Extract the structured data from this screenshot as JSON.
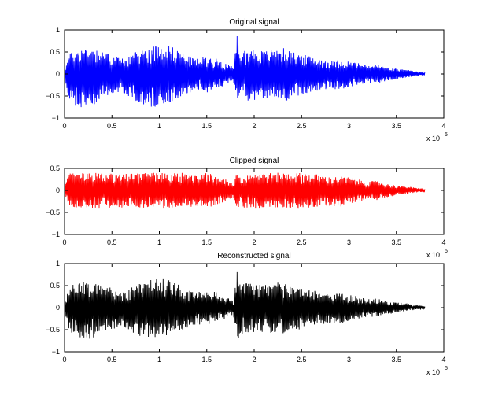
{
  "chart_data": [
    {
      "type": "line",
      "title": "Original signal",
      "xlabel": "",
      "ylabel": "",
      "xlim": [
        0,
        400000
      ],
      "ylim": [
        -1,
        1
      ],
      "x_ticks": [
        0,
        50000,
        100000,
        150000,
        200000,
        250000,
        300000,
        350000,
        400000
      ],
      "x_tick_labels": [
        "0",
        "0.5",
        "1",
        "1.5",
        "2",
        "2.5",
        "3",
        "3.5",
        "4"
      ],
      "y_ticks": [
        -1,
        -0.5,
        0,
        0.5,
        1
      ],
      "y_tick_labels": [
        "−1",
        "−0.5",
        "0",
        "0.5",
        "1"
      ],
      "x_exponent_label": "x 10",
      "x_exponent": "5",
      "grid": false,
      "series": [
        {
          "color": "#0000ff",
          "x": [
            0,
            5000,
            10000,
            20000,
            30000,
            40000,
            50000,
            60000,
            70000,
            80000,
            90000,
            100000,
            110000,
            120000,
            130000,
            140000,
            150000,
            160000,
            170000,
            178000,
            182000,
            186000,
            190000,
            200000,
            210000,
            220000,
            230000,
            240000,
            250000,
            260000,
            270000,
            280000,
            290000,
            300000,
            310000,
            320000,
            330000,
            340000,
            350000,
            360000,
            370000,
            380000
          ],
          "upper": [
            0.1,
            0.45,
            0.55,
            0.6,
            0.62,
            0.5,
            0.45,
            0.35,
            0.45,
            0.55,
            0.62,
            0.68,
            0.65,
            0.55,
            0.4,
            0.35,
            0.4,
            0.35,
            0.25,
            0.15,
            0.95,
            0.5,
            0.55,
            0.58,
            0.52,
            0.55,
            0.6,
            0.5,
            0.45,
            0.4,
            0.35,
            0.3,
            0.32,
            0.3,
            0.25,
            0.2,
            0.22,
            0.15,
            0.12,
            0.1,
            0.06,
            0.04
          ],
          "lower": [
            -0.1,
            -0.6,
            -0.75,
            -0.8,
            -0.72,
            -0.55,
            -0.5,
            -0.4,
            -0.55,
            -0.7,
            -0.78,
            -0.72,
            -0.65,
            -0.55,
            -0.45,
            -0.38,
            -0.42,
            -0.35,
            -0.25,
            -0.15,
            -0.85,
            -0.6,
            -0.62,
            -0.6,
            -0.55,
            -0.6,
            -0.65,
            -0.55,
            -0.48,
            -0.42,
            -0.38,
            -0.35,
            -0.38,
            -0.3,
            -0.25,
            -0.2,
            -0.22,
            -0.15,
            -0.12,
            -0.08,
            -0.05,
            -0.04
          ]
        }
      ]
    },
    {
      "type": "line",
      "title": "Clipped signal",
      "xlabel": "",
      "ylabel": "",
      "xlim": [
        0,
        400000
      ],
      "ylim": [
        -1,
        0.5
      ],
      "x_ticks": [
        0,
        50000,
        100000,
        150000,
        200000,
        250000,
        300000,
        350000,
        400000
      ],
      "x_tick_labels": [
        "0",
        "0.5",
        "1",
        "1.5",
        "2",
        "2.5",
        "3",
        "3.5",
        "4"
      ],
      "y_ticks": [
        -1,
        -0.5,
        0,
        0.5
      ],
      "y_tick_labels": [
        "−1",
        "−0.5",
        "0",
        "0.5"
      ],
      "x_exponent_label": "x 10",
      "x_exponent": "5",
      "grid": false,
      "series": [
        {
          "color": "#ff0000",
          "x": [
            0,
            5000,
            10000,
            20000,
            30000,
            40000,
            50000,
            60000,
            70000,
            80000,
            90000,
            100000,
            110000,
            120000,
            130000,
            140000,
            150000,
            160000,
            170000,
            178000,
            182000,
            186000,
            190000,
            200000,
            210000,
            220000,
            230000,
            240000,
            250000,
            260000,
            270000,
            280000,
            290000,
            300000,
            310000,
            320000,
            330000,
            340000,
            350000,
            360000,
            370000,
            380000
          ],
          "upper": [
            0.1,
            0.4,
            0.4,
            0.4,
            0.4,
            0.4,
            0.4,
            0.35,
            0.4,
            0.4,
            0.4,
            0.4,
            0.4,
            0.4,
            0.4,
            0.35,
            0.4,
            0.35,
            0.25,
            0.15,
            0.4,
            0.4,
            0.4,
            0.4,
            0.4,
            0.4,
            0.4,
            0.4,
            0.4,
            0.4,
            0.35,
            0.3,
            0.32,
            0.3,
            0.25,
            0.2,
            0.22,
            0.15,
            0.12,
            0.1,
            0.06,
            0.04
          ],
          "lower": [
            -0.1,
            -0.4,
            -0.4,
            -0.4,
            -0.4,
            -0.4,
            -0.4,
            -0.4,
            -0.4,
            -0.4,
            -0.4,
            -0.4,
            -0.4,
            -0.4,
            -0.4,
            -0.38,
            -0.4,
            -0.35,
            -0.25,
            -0.15,
            -0.4,
            -0.4,
            -0.4,
            -0.4,
            -0.4,
            -0.4,
            -0.4,
            -0.4,
            -0.4,
            -0.4,
            -0.38,
            -0.35,
            -0.38,
            -0.3,
            -0.25,
            -0.2,
            -0.22,
            -0.15,
            -0.12,
            -0.08,
            -0.05,
            -0.04
          ]
        }
      ]
    },
    {
      "type": "line",
      "title": "Reconstructed signal",
      "xlabel": "",
      "ylabel": "",
      "xlim": [
        0,
        400000
      ],
      "ylim": [
        -1,
        1
      ],
      "x_ticks": [
        0,
        50000,
        100000,
        150000,
        200000,
        250000,
        300000,
        350000,
        400000
      ],
      "x_tick_labels": [
        "0",
        "0.5",
        "1",
        "1.5",
        "2",
        "2.5",
        "3",
        "3.5",
        "4"
      ],
      "y_ticks": [
        -1,
        -0.5,
        0,
        0.5,
        1
      ],
      "y_tick_labels": [
        "−1",
        "−0.5",
        "0",
        "0.5",
        "1"
      ],
      "x_exponent_label": "x 10",
      "x_exponent": "5",
      "grid": false,
      "series": [
        {
          "color": "#000000",
          "x": [
            0,
            5000,
            10000,
            20000,
            30000,
            40000,
            50000,
            60000,
            70000,
            80000,
            90000,
            100000,
            110000,
            120000,
            130000,
            140000,
            150000,
            160000,
            170000,
            178000,
            182000,
            186000,
            190000,
            200000,
            210000,
            220000,
            230000,
            240000,
            250000,
            260000,
            270000,
            280000,
            290000,
            300000,
            310000,
            320000,
            330000,
            340000,
            350000,
            360000,
            370000,
            380000
          ],
          "upper": [
            0.1,
            0.45,
            0.55,
            0.6,
            0.62,
            0.5,
            0.45,
            0.35,
            0.45,
            0.55,
            0.62,
            0.68,
            0.65,
            0.55,
            0.4,
            0.35,
            0.4,
            0.35,
            0.25,
            0.15,
            0.9,
            0.5,
            0.55,
            0.58,
            0.52,
            0.55,
            0.6,
            0.5,
            0.45,
            0.4,
            0.35,
            0.3,
            0.32,
            0.3,
            0.25,
            0.2,
            0.22,
            0.15,
            0.12,
            0.1,
            0.06,
            0.04
          ],
          "lower": [
            -0.1,
            -0.55,
            -0.7,
            -0.75,
            -0.68,
            -0.55,
            -0.5,
            -0.4,
            -0.55,
            -0.65,
            -0.72,
            -0.68,
            -0.62,
            -0.55,
            -0.45,
            -0.38,
            -0.42,
            -0.35,
            -0.25,
            -0.15,
            -0.8,
            -0.6,
            -0.6,
            -0.58,
            -0.55,
            -0.58,
            -0.62,
            -0.55,
            -0.48,
            -0.42,
            -0.38,
            -0.35,
            -0.38,
            -0.3,
            -0.25,
            -0.2,
            -0.22,
            -0.15,
            -0.12,
            -0.08,
            -0.05,
            -0.04
          ]
        }
      ]
    }
  ]
}
